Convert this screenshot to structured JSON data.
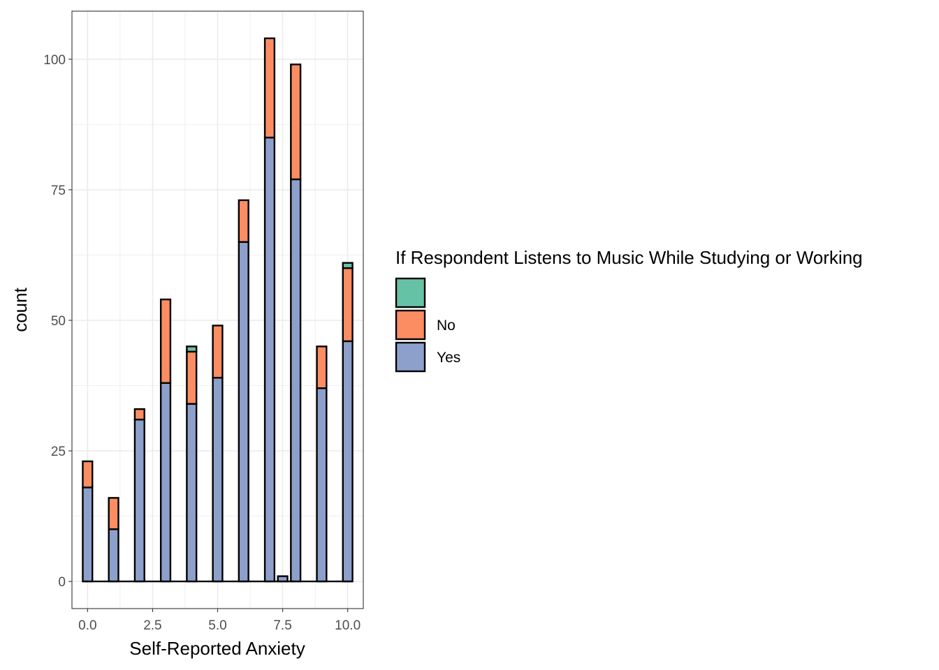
{
  "chart_data": {
    "type": "bar",
    "stacked": true,
    "xlabel": "Self-Reported Anxiety",
    "ylabel": "count",
    "xlim": [
      -0.6,
      10.6
    ],
    "ylim": [
      -5.2,
      109.2
    ],
    "x_ticks": [
      0.0,
      2.5,
      5.0,
      7.5,
      10.0
    ],
    "x_tick_labels": [
      "0.0",
      "2.5",
      "5.0",
      "7.5",
      "10.0"
    ],
    "y_ticks": [
      0,
      25,
      50,
      75,
      100
    ],
    "y_tick_labels": [
      "0",
      "25",
      "50",
      "75",
      "100"
    ],
    "grid": true,
    "legend_position": "right",
    "legend_title": "If Respondent Listens to Music While Studying or Working",
    "bin_width": 0.37,
    "x": [
      0,
      1,
      2,
      3,
      4,
      5,
      6,
      7,
      7.5,
      8,
      9,
      10
    ],
    "series": [
      {
        "name": "",
        "color": "#66C2A5",
        "values": [
          0,
          0,
          0,
          0,
          1,
          0,
          0,
          0,
          0,
          0,
          0,
          1
        ]
      },
      {
        "name": "No",
        "color": "#FC8D62",
        "values": [
          5,
          6,
          2,
          16,
          10,
          10,
          8,
          19,
          0,
          22,
          8,
          14
        ]
      },
      {
        "name": "Yes",
        "color": "#8DA0CB",
        "values": [
          18,
          10,
          31,
          38,
          34,
          39,
          65,
          85,
          1,
          77,
          37,
          46
        ]
      }
    ]
  }
}
